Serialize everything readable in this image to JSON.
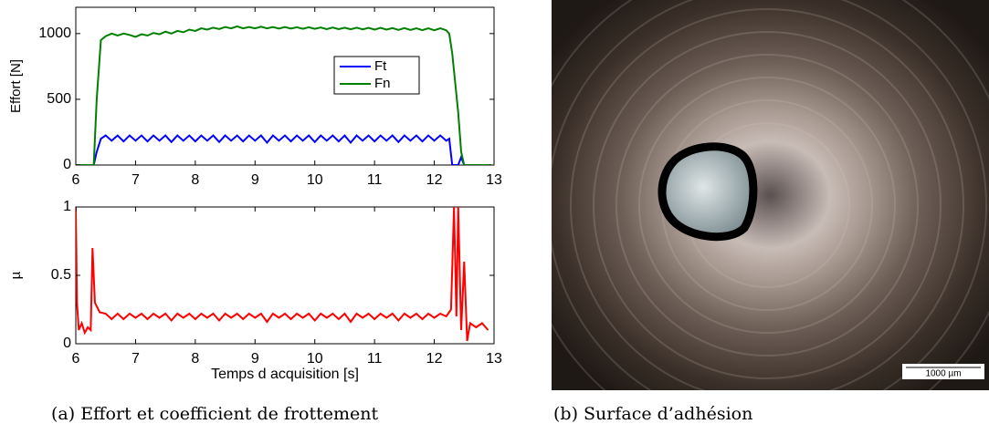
{
  "chart_data": [
    {
      "type": "line",
      "ylabel": "Effort [N]",
      "x": [
        6,
        6.3,
        6.35,
        6.42,
        6.5,
        6.6,
        6.7,
        6.8,
        6.9,
        7.0,
        7.1,
        7.2,
        7.3,
        7.4,
        7.5,
        7.6,
        7.7,
        7.8,
        7.9,
        8.0,
        8.1,
        8.2,
        8.3,
        8.4,
        8.5,
        8.6,
        8.7,
        8.8,
        8.9,
        9.0,
        9.1,
        9.2,
        9.3,
        9.4,
        9.5,
        9.6,
        9.7,
        9.8,
        9.9,
        10.0,
        10.1,
        10.2,
        10.3,
        10.4,
        10.5,
        10.6,
        10.7,
        10.8,
        10.9,
        11.0,
        11.1,
        11.2,
        11.3,
        11.4,
        11.5,
        11.6,
        11.7,
        11.8,
        11.9,
        12.0,
        12.1,
        12.2,
        12.25,
        12.3,
        12.4,
        12.45,
        12.5,
        12.95
      ],
      "series": [
        {
          "name": "Ft",
          "color": "#0000ff",
          "values": [
            0,
            0,
            100,
            200,
            225,
            185,
            225,
            180,
            225,
            185,
            225,
            180,
            225,
            185,
            225,
            175,
            225,
            185,
            225,
            180,
            225,
            185,
            225,
            175,
            225,
            185,
            225,
            180,
            225,
            185,
            225,
            170,
            225,
            185,
            225,
            180,
            225,
            185,
            225,
            175,
            225,
            185,
            225,
            180,
            225,
            170,
            225,
            185,
            225,
            180,
            225,
            185,
            225,
            175,
            225,
            185,
            225,
            180,
            225,
            185,
            225,
            185,
            200,
            0,
            0,
            60,
            0,
            0
          ]
        },
        {
          "name": "Fn",
          "color": "#008000",
          "values": [
            0,
            0,
            500,
            950,
            980,
            1000,
            985,
            1000,
            990,
            975,
            995,
            985,
            1005,
            995,
            1015,
            1000,
            1020,
            1010,
            1030,
            1020,
            1040,
            1030,
            1045,
            1035,
            1050,
            1040,
            1055,
            1040,
            1050,
            1040,
            1052,
            1040,
            1050,
            1038,
            1050,
            1038,
            1048,
            1036,
            1048,
            1036,
            1046,
            1034,
            1046,
            1034,
            1045,
            1033,
            1045,
            1032,
            1044,
            1030,
            1044,
            1030,
            1042,
            1028,
            1042,
            1028,
            1040,
            1026,
            1040,
            1025,
            1040,
            1025,
            1000,
            850,
            400,
            100,
            0,
            0
          ]
        }
      ],
      "xlim": [
        6,
        13
      ],
      "xticks": [
        6,
        7,
        8,
        9,
        10,
        11,
        12,
        13
      ],
      "ylim": [
        0,
        1200
      ],
      "yticks": [
        0,
        500,
        1000
      ],
      "legend": "right"
    },
    {
      "type": "line",
      "ylabel": "µ",
      "xlabel": "Temps d acquisition [s]",
      "x": [
        6.0,
        6.02,
        6.05,
        6.1,
        6.15,
        6.2,
        6.25,
        6.28,
        6.32,
        6.4,
        6.5,
        6.6,
        6.7,
        6.8,
        6.9,
        7.0,
        7.1,
        7.2,
        7.3,
        7.4,
        7.5,
        7.6,
        7.7,
        7.8,
        7.9,
        8.0,
        8.1,
        8.2,
        8.3,
        8.4,
        8.5,
        8.6,
        8.7,
        8.8,
        8.9,
        9.0,
        9.1,
        9.2,
        9.3,
        9.4,
        9.5,
        9.6,
        9.7,
        9.8,
        9.9,
        10.0,
        10.1,
        10.2,
        10.3,
        10.4,
        10.5,
        10.6,
        10.7,
        10.8,
        10.9,
        11.0,
        11.1,
        11.2,
        11.3,
        11.4,
        11.5,
        11.6,
        11.7,
        11.8,
        11.9,
        12.0,
        12.1,
        12.2,
        12.28,
        12.33,
        12.37,
        12.4,
        12.45,
        12.5,
        12.55,
        12.6,
        12.7,
        12.8,
        12.9
      ],
      "series": [
        {
          "name": "µ",
          "color": "#ff0000",
          "values": [
            1,
            0.3,
            0.1,
            0.15,
            0.08,
            0.12,
            0.1,
            0.7,
            0.3,
            0.23,
            0.22,
            0.18,
            0.22,
            0.18,
            0.22,
            0.19,
            0.22,
            0.18,
            0.22,
            0.19,
            0.22,
            0.17,
            0.22,
            0.19,
            0.22,
            0.18,
            0.22,
            0.19,
            0.22,
            0.17,
            0.22,
            0.19,
            0.22,
            0.18,
            0.22,
            0.19,
            0.22,
            0.16,
            0.22,
            0.19,
            0.22,
            0.18,
            0.22,
            0.19,
            0.22,
            0.17,
            0.22,
            0.19,
            0.22,
            0.18,
            0.22,
            0.16,
            0.22,
            0.19,
            0.22,
            0.18,
            0.22,
            0.19,
            0.22,
            0.17,
            0.22,
            0.19,
            0.22,
            0.18,
            0.22,
            0.19,
            0.22,
            0.2,
            0.25,
            1,
            0.2,
            1,
            0.1,
            0.6,
            0.02,
            0.15,
            0.12,
            0.15,
            0.1
          ]
        }
      ],
      "xlim": [
        6,
        13
      ],
      "xticks": [
        6,
        7,
        8,
        9,
        10,
        11,
        12,
        13
      ],
      "ylim": [
        0,
        1
      ],
      "yticks": [
        0,
        0.5,
        1
      ]
    }
  ],
  "image": {
    "scale_label": "1000 µm"
  },
  "captions": [
    "(a) Effort et coefficient de frottement",
    "(b) Surface d’adhésion"
  ]
}
